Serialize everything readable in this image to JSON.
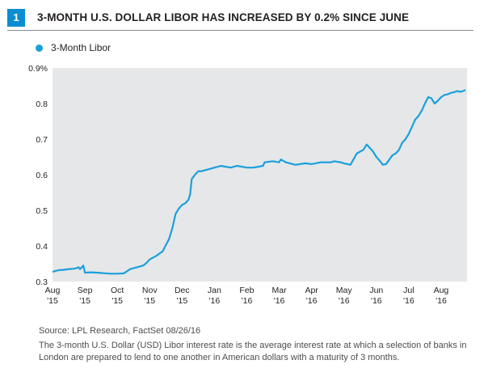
{
  "header": {
    "badge": "1",
    "title": "3-MONTH U.S. DOLLAR LIBOR HAS INCREASED BY 0.2% SINCE JUNE"
  },
  "legend": {
    "label": "3-Month Libor",
    "color": "#1aa0dc"
  },
  "chart_data": {
    "type": "line",
    "title": "3-MONTH U.S. DOLLAR LIBOR HAS INCREASED BY 0.2% SINCE JUNE",
    "xlabel": "",
    "ylabel": "",
    "ylim": [
      0.3,
      0.9
    ],
    "xlim": [
      0,
      12.8
    ],
    "y_ticks": [
      0.3,
      0.4,
      0.5,
      0.6,
      0.7,
      0.8,
      0.9
    ],
    "y_tick_labels": [
      "0.3",
      "0.4",
      "0.5",
      "0.6",
      "0.7",
      "0.8",
      "0.9%"
    ],
    "x_ticks": [
      {
        "month": "Aug",
        "year": "'15"
      },
      {
        "month": "Sep",
        "year": "'15"
      },
      {
        "month": "Oct",
        "year": "'15"
      },
      {
        "month": "Nov",
        "year": "'15"
      },
      {
        "month": "Dec",
        "year": "'15"
      },
      {
        "month": "Jan",
        "year": "'16"
      },
      {
        "month": "Feb",
        "year": "'16"
      },
      {
        "month": "Mar",
        "year": "'16"
      },
      {
        "month": "Apr",
        "year": "'16"
      },
      {
        "month": "May",
        "year": "'16"
      },
      {
        "month": "Jun",
        "year": "'16"
      },
      {
        "month": "Jul",
        "year": "'16"
      },
      {
        "month": "Aug",
        "year": "'16"
      }
    ],
    "grid": false,
    "legend_position": "top-left",
    "series": [
      {
        "name": "3-Month Libor",
        "color": "#1aa0dc",
        "x": [
          0.0,
          0.1,
          0.2,
          0.35,
          0.5,
          0.65,
          0.75,
          0.8,
          0.85,
          0.95,
          1.0,
          1.2,
          1.5,
          1.8,
          2.0,
          2.2,
          2.4,
          2.6,
          2.8,
          2.9,
          3.0,
          3.2,
          3.4,
          3.6,
          3.7,
          3.8,
          3.9,
          4.0,
          4.1,
          4.2,
          4.25,
          4.3,
          4.4,
          4.5,
          4.6,
          4.8,
          5.0,
          5.2,
          5.5,
          5.7,
          6.0,
          6.2,
          6.5,
          6.55,
          6.8,
          7.0,
          7.05,
          7.2,
          7.5,
          7.8,
          8.0,
          8.3,
          8.6,
          8.7,
          8.75,
          8.9,
          9.0,
          9.1,
          9.2,
          9.4,
          9.5,
          9.6,
          9.7,
          9.8,
          9.9,
          10.0,
          10.05,
          10.1,
          10.2,
          10.3,
          10.5,
          10.6,
          10.7,
          10.8,
          10.9,
          11.0,
          11.1,
          11.2,
          11.3,
          11.4,
          11.5,
          11.6,
          11.7,
          11.8,
          11.9,
          12.0,
          12.1,
          12.2,
          12.3,
          12.4,
          12.5,
          12.6,
          12.7,
          12.75
        ],
        "values": [
          0.327,
          0.33,
          0.332,
          0.333,
          0.335,
          0.336,
          0.338,
          0.34,
          0.335,
          0.345,
          0.325,
          0.326,
          0.324,
          0.322,
          0.322,
          0.323,
          0.335,
          0.34,
          0.345,
          0.352,
          0.362,
          0.372,
          0.385,
          0.42,
          0.45,
          0.49,
          0.505,
          0.515,
          0.52,
          0.53,
          0.545,
          0.588,
          0.6,
          0.61,
          0.61,
          0.615,
          0.62,
          0.625,
          0.62,
          0.625,
          0.62,
          0.62,
          0.625,
          0.635,
          0.638,
          0.635,
          0.643,
          0.635,
          0.628,
          0.632,
          0.63,
          0.635,
          0.635,
          0.638,
          0.637,
          0.635,
          0.632,
          0.63,
          0.628,
          0.66,
          0.665,
          0.67,
          0.685,
          0.675,
          0.665,
          0.65,
          0.645,
          0.64,
          0.628,
          0.63,
          0.655,
          0.66,
          0.67,
          0.69,
          0.7,
          0.715,
          0.735,
          0.755,
          0.765,
          0.78,
          0.8,
          0.818,
          0.815,
          0.8,
          0.808,
          0.818,
          0.824,
          0.826,
          0.83,
          0.832,
          0.835,
          0.833,
          0.836,
          0.838
        ]
      }
    ]
  },
  "footer": {
    "source": "Source: LPL Research, FactSet  08/26/16",
    "note": "The 3-month U.S. Dollar (USD) Libor interest rate is the average interest rate at which a selection of banks in London are prepared to lend to one another in American dollars with a maturity of 3 months."
  }
}
